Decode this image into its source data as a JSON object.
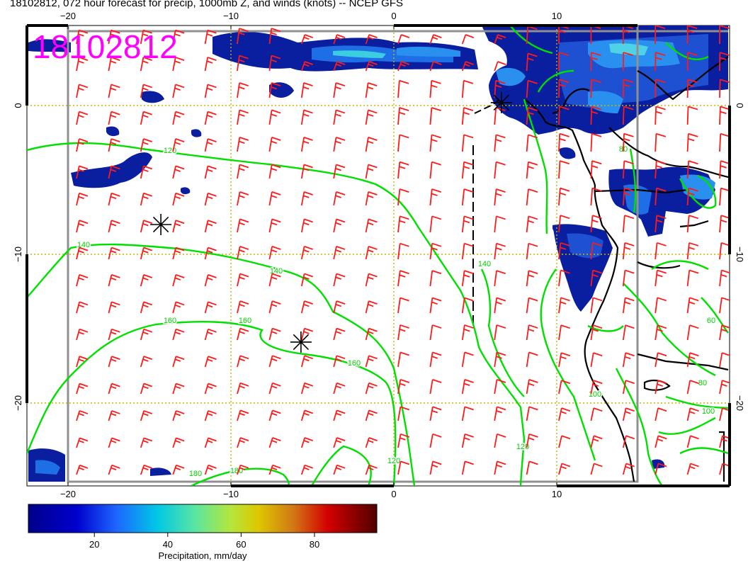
{
  "title": "18102812, 072 hour forecast for precip, 1000mb Z, and winds (knots) -- NCEP GFS",
  "stamp": "18102812",
  "colors": {
    "barb": "#ff1a1a",
    "contour": "#00e000",
    "grid": "#c8b400",
    "coast": "#000000",
    "stamp": "#ff00ff"
  },
  "axes": {
    "x_ticks": [
      {
        "label": "−20",
        "value": -20
      },
      {
        "label": "−10",
        "value": -10
      },
      {
        "label": "0",
        "value": 0
      },
      {
        "label": "10",
        "value": 10
      }
    ],
    "y_ticks": [
      {
        "label": "0",
        "value": 0
      },
      {
        "label": "−10",
        "value": -10
      },
      {
        "label": "−20",
        "value": -20
      }
    ]
  },
  "contours": [
    {
      "label": "120",
      "value": 120
    },
    {
      "label": "140",
      "value": 140
    },
    {
      "label": "140",
      "value": 140
    },
    {
      "label": "160",
      "value": 160
    },
    {
      "label": "160",
      "value": 160
    },
    {
      "label": "160",
      "value": 160
    },
    {
      "label": "180",
      "value": 180
    },
    {
      "label": "180",
      "value": 180
    },
    {
      "label": "140",
      "value": 140
    },
    {
      "label": "120",
      "value": 120
    },
    {
      "label": "100",
      "value": 100
    },
    {
      "label": "100",
      "value": 100
    },
    {
      "label": "80",
      "value": 80
    },
    {
      "label": "80",
      "value": 80
    },
    {
      "label": "60",
      "value": 60
    },
    {
      "label": "120",
      "value": 120
    }
  ],
  "pressure_centers": [
    {
      "name": "center-1",
      "lon": -14.3,
      "lat": -8.0
    },
    {
      "name": "center-2",
      "lon": -5.7,
      "lat": -15.9
    },
    {
      "name": "center-3",
      "lon": 6.6,
      "lat": 0.2
    }
  ],
  "colorbar": {
    "label": "Precipitation, mm/day",
    "ticks": [
      "20",
      "40",
      "60",
      "80"
    ]
  }
}
